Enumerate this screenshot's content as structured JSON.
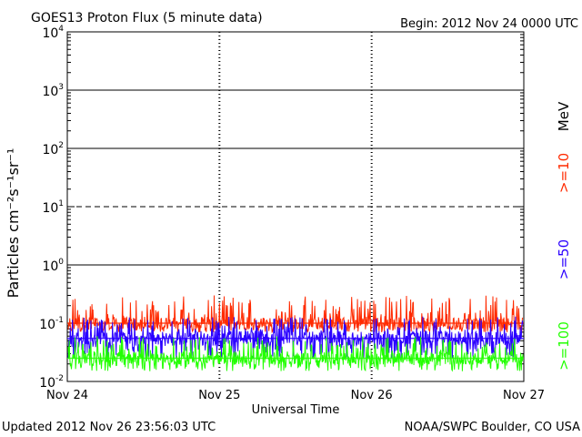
{
  "header": {
    "title": "GOES13 Proton Flux (5 minute data)",
    "begin": "Begin: 2012 Nov 24 0000 UTC"
  },
  "footer": {
    "updated": "Updated 2012 Nov 26 23:56:03 UTC",
    "credit": "NOAA/SWPC Boulder, CO USA"
  },
  "chart_data": {
    "type": "line",
    "title": "GOES13 Proton Flux (5 minute data)",
    "xlabel": "Universal Time",
    "ylabel": "Particles cm⁻²s⁻¹sr⁻¹",
    "y_scale": "log",
    "ylim": [
      0.01,
      10000
    ],
    "xlim": [
      "2012-11-24",
      "2012-11-27"
    ],
    "x_ticks": [
      "Nov 24",
      "Nov 25",
      "Nov 26",
      "Nov 27"
    ],
    "y_ticks": [
      {
        "base": "10",
        "exp": "-2"
      },
      {
        "base": "10",
        "exp": "-1"
      },
      {
        "base": "10",
        "exp": "0"
      },
      {
        "base": "10",
        "exp": "1"
      },
      {
        "base": "10",
        "exp": "2"
      },
      {
        "base": "10",
        "exp": "3"
      },
      {
        "base": "10",
        "exp": "4"
      }
    ],
    "thresholds": [
      {
        "value": 10,
        "style": "dashed"
      },
      {
        "value": 1,
        "style": "solid"
      },
      {
        "value": 100,
        "style": "solid"
      },
      {
        "value": 1000,
        "style": "solid"
      }
    ],
    "legend_placement": "right",
    "legend_unit": "MeV",
    "series": [
      {
        "name": ">=10",
        "color": "#ff2a00",
        "baseline": 0.1,
        "noise_range": [
          0.07,
          0.3
        ]
      },
      {
        "name": ">=50",
        "color": "#2a00ff",
        "baseline": 0.055,
        "noise_range": [
          0.025,
          0.13
        ]
      },
      {
        "name": ">=100",
        "color": "#22ff00",
        "baseline": 0.025,
        "noise_range": [
          0.015,
          0.06
        ]
      }
    ]
  }
}
